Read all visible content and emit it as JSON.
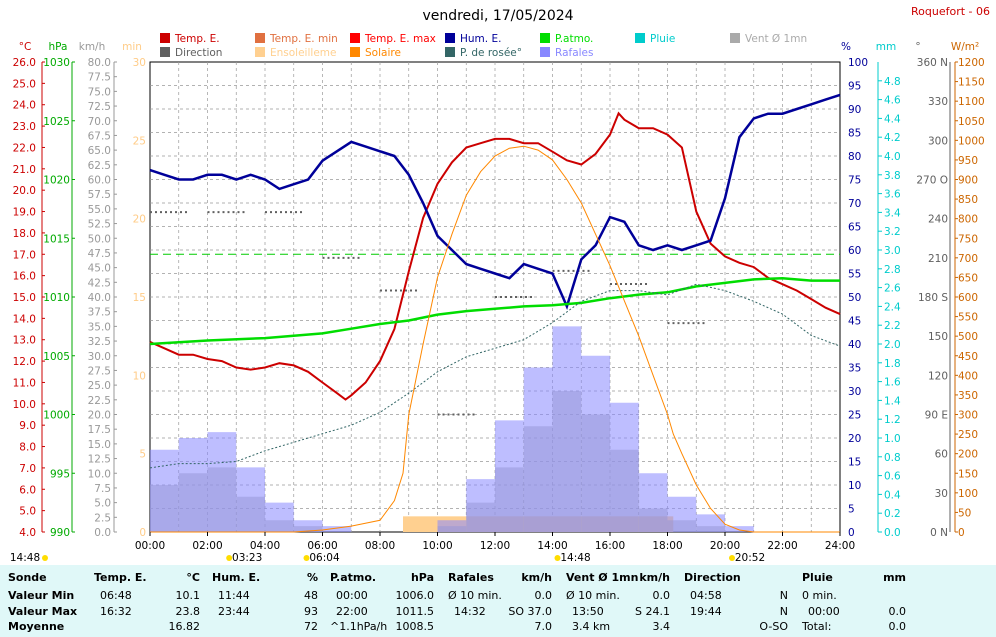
{
  "header": {
    "title": "vendredi, 17/05/2024",
    "station": "Roquefort - 06"
  },
  "legend": [
    {
      "label": "Temp. E.",
      "color": "#cc0000"
    },
    {
      "label": "Temp. E. min",
      "color": "#e07040"
    },
    {
      "label": "Temp. E. max",
      "color": "#ff0000"
    },
    {
      "label": "Hum. E.",
      "color": "#000099"
    },
    {
      "label": "P.atmo.",
      "color": "#00dd00"
    },
    {
      "label": "Pluie",
      "color": "#00cccc"
    },
    {
      "label": "Vent Ø 1mn",
      "color": "#aaaaaa"
    },
    {
      "label": "Direction",
      "color": "#606060"
    },
    {
      "label": "Ensoleilleme",
      "color": "#ffd090"
    },
    {
      "label": "Solaire",
      "color": "#ff8800"
    },
    {
      "label": "P. de rosée°",
      "color": "#336666"
    },
    {
      "label": "Rafales",
      "color": "#8888ff"
    }
  ],
  "chart_data": {
    "type": "line",
    "x_range": [
      "00:00",
      "24:00"
    ],
    "x_ticks": [
      "00:00",
      "02:00",
      "04:00",
      "06:00",
      "08:00",
      "10:00",
      "12:00",
      "14:00",
      "16:00",
      "18:00",
      "20:00",
      "22:00",
      "24:00"
    ],
    "axes": {
      "temp": {
        "unit": "°C",
        "color": "#cc0000",
        "range": [
          4.0,
          26.0
        ],
        "ticks": [
          "26.0",
          "25.0",
          "24.0",
          "23.0",
          "22.0",
          "21.0",
          "20.0",
          "19.0",
          "18.0",
          "17.0",
          "16.0",
          "15.0",
          "14.0",
          "13.0",
          "12.0",
          "11.0",
          "10.0",
          "9.0",
          "8.0",
          "7.0",
          "6.0",
          "5.0",
          "4.0"
        ]
      },
      "pressure": {
        "unit": "hPa",
        "color": "#00aa00",
        "range": [
          990,
          1030
        ],
        "ticks": [
          "1030",
          "1025",
          "1020",
          "1015",
          "1010",
          "1005",
          "1000",
          "995",
          "990"
        ]
      },
      "wind": {
        "unit": "km/h",
        "color": "#999999",
        "range": [
          0,
          80
        ],
        "ticks": [
          "80.0",
          "77.5",
          "75.0",
          "72.5",
          "70.0",
          "67.5",
          "65.0",
          "62.5",
          "60.0",
          "57.5",
          "55.0",
          "52.5",
          "50.0",
          "47.5",
          "45.0",
          "42.5",
          "40.0",
          "37.5",
          "35.0",
          "32.5",
          "30.0",
          "27.5",
          "25.0",
          "22.5",
          "20.0",
          "17.5",
          "15.0",
          "12.5",
          "10.0",
          "7.5",
          "5.0",
          "2.5",
          "0.0"
        ]
      },
      "min": {
        "unit": "min",
        "color": "#ffcc88",
        "range": [
          0,
          30
        ],
        "ticks": [
          "30",
          "25",
          "20",
          "15",
          "10",
          "5",
          "0"
        ]
      },
      "humidity": {
        "unit": "%",
        "color": "#000099",
        "range": [
          0,
          100
        ],
        "ticks": [
          "100",
          "95",
          "90",
          "85",
          "80",
          "75",
          "70",
          "65",
          "60",
          "55",
          "50",
          "45",
          "40",
          "35",
          "30",
          "25",
          "20",
          "15",
          "10",
          "5",
          "0"
        ]
      },
      "rain": {
        "unit": "mm",
        "color": "#00cccc",
        "range": [
          0,
          5
        ],
        "ticks": [
          "4.8",
          "4.6",
          "4.4",
          "4.2",
          "4.0",
          "3.8",
          "3.6",
          "3.4",
          "3.2",
          "3.0",
          "2.8",
          "2.6",
          "2.4",
          "2.2",
          "2.0",
          "1.8",
          "1.6",
          "1.4",
          "1.2",
          "1.0",
          "0.8",
          "0.6",
          "0.4",
          "0.2",
          "0.0"
        ]
      },
      "direction": {
        "unit": "°",
        "color": "#606060",
        "range": [
          0,
          360
        ],
        "ticks": [
          "360 N",
          "330",
          "300",
          "270 O",
          "240",
          "210",
          "180 S",
          "150",
          "120",
          "90 E",
          "60",
          "30",
          "0 N"
        ]
      },
      "solar": {
        "unit": "W/m²",
        "color": "#cc6600",
        "range": [
          0,
          1200
        ],
        "ticks": [
          "1200",
          "1150",
          "1100",
          "1050",
          "1000",
          "950",
          "900",
          "850",
          "800",
          "750",
          "700",
          "650",
          "600",
          "550",
          "500",
          "450",
          "400",
          "350",
          "300",
          "250",
          "200",
          "150",
          "100",
          "50",
          "0"
        ]
      }
    },
    "series": [
      {
        "name": "Temp. E.",
        "axis": "temp",
        "color": "#cc0000",
        "x": [
          0,
          0.5,
          1,
          1.5,
          2,
          2.5,
          3,
          3.5,
          4,
          4.5,
          5,
          5.5,
          6,
          6.5,
          6.8,
          7,
          7.5,
          8,
          8.5,
          9,
          9.5,
          10,
          10.5,
          11,
          11.5,
          12,
          12.5,
          13,
          13.5,
          14,
          14.5,
          15,
          15.5,
          16,
          16.3,
          16.5,
          17,
          17.5,
          18,
          18.5,
          19,
          19.5,
          20,
          20.5,
          21,
          21.5,
          22,
          22.5,
          23,
          23.5,
          24
        ],
        "y": [
          12.9,
          12.6,
          12.3,
          12.3,
          12.1,
          12.0,
          11.7,
          11.6,
          11.7,
          11.9,
          11.8,
          11.5,
          11.0,
          10.5,
          10.2,
          10.4,
          11.0,
          12.0,
          13.5,
          16.2,
          18.7,
          20.3,
          21.3,
          22.0,
          22.2,
          22.4,
          22.4,
          22.2,
          22.2,
          21.8,
          21.4,
          21.2,
          21.7,
          22.6,
          23.6,
          23.3,
          22.9,
          22.9,
          22.6,
          22.0,
          19.0,
          17.5,
          16.9,
          16.6,
          16.4,
          15.9,
          15.6,
          15.3,
          14.9,
          14.5,
          14.2
        ]
      },
      {
        "name": "Hum. E.",
        "axis": "humidity",
        "color": "#000099",
        "x": [
          0,
          0.5,
          1,
          1.5,
          2,
          2.5,
          3,
          3.5,
          4,
          4.5,
          5,
          5.5,
          6,
          6.5,
          7,
          7.5,
          8,
          8.5,
          9,
          9.5,
          10,
          10.5,
          11,
          11.5,
          12,
          12.5,
          13,
          13.5,
          14,
          14.5,
          15,
          15.5,
          16,
          16.5,
          17,
          17.5,
          18,
          18.5,
          19,
          19.5,
          20,
          20.5,
          21,
          21.5,
          22,
          22.5,
          23,
          23.5,
          24
        ],
        "y": [
          77,
          76,
          75,
          75,
          76,
          76,
          75,
          76,
          75,
          73,
          74,
          75,
          79,
          81,
          83,
          82,
          81,
          80,
          76,
          70,
          63,
          60,
          57,
          56,
          55,
          54,
          57,
          56,
          55,
          48,
          58,
          61,
          67,
          66,
          61,
          60,
          61,
          60,
          61,
          62,
          71,
          84,
          88,
          89,
          89,
          90,
          91,
          92,
          93
        ]
      },
      {
        "name": "P.atmo.",
        "axis": "pressure",
        "color": "#00dd00",
        "x": [
          0,
          2,
          4,
          6,
          7,
          8,
          9,
          10,
          11,
          12,
          13,
          14,
          15,
          16,
          17,
          18,
          19,
          20,
          21,
          22,
          23,
          24
        ],
        "y": [
          1006.0,
          1006.3,
          1006.5,
          1006.9,
          1007.3,
          1007.7,
          1008.0,
          1008.5,
          1008.8,
          1009.0,
          1009.2,
          1009.3,
          1009.5,
          1009.9,
          1010.2,
          1010.4,
          1010.9,
          1011.2,
          1011.5,
          1011.6,
          1011.4,
          1011.4
        ]
      },
      {
        "name": "P. de rosée°",
        "axis": "temp",
        "color": "#336666",
        "x": [
          0,
          1,
          2,
          3,
          4,
          5,
          6,
          7,
          8,
          9,
          10,
          11,
          12,
          13,
          14,
          15,
          16,
          17,
          18,
          19,
          20,
          21,
          22,
          23,
          24
        ],
        "y": [
          7.0,
          7.2,
          7.2,
          7.3,
          7.8,
          8.2,
          8.6,
          9.0,
          9.6,
          10.5,
          11.5,
          12.2,
          12.6,
          13.0,
          13.8,
          14.8,
          15.3,
          15.3,
          15.1,
          15.6,
          15.3,
          14.8,
          14.2,
          13.2,
          12.7
        ]
      },
      {
        "name": "Solaire",
        "axis": "solar",
        "color": "#ff8800",
        "x": [
          0,
          5,
          6,
          7,
          8,
          8.5,
          8.8,
          9,
          9.5,
          10,
          10.5,
          11,
          11.5,
          12,
          12.5,
          13,
          13.5,
          14,
          14.5,
          15,
          15.5,
          16,
          16.5,
          17,
          17.5,
          18,
          18.2,
          18.5,
          19,
          19.5,
          20,
          20.5,
          21,
          24
        ],
        "y": [
          0,
          0,
          5,
          15,
          30,
          80,
          150,
          300,
          480,
          650,
          760,
          860,
          920,
          960,
          980,
          985,
          975,
          950,
          900,
          840,
          760,
          680,
          590,
          500,
          400,
          300,
          250,
          200,
          120,
          60,
          20,
          5,
          0,
          0
        ]
      },
      {
        "name": "Vent Ø 1mn",
        "axis": "wind",
        "color": "#aaaaaa",
        "x": [
          0,
          1,
          2,
          3,
          4,
          5,
          6,
          7,
          8,
          9,
          10,
          11,
          12,
          13,
          14,
          15,
          16,
          17,
          18,
          19,
          20,
          21,
          24
        ],
        "y": [
          8,
          10,
          11,
          6,
          2,
          1,
          0,
          0,
          0,
          0,
          1,
          5,
          11,
          18,
          24,
          20,
          14,
          4,
          2,
          1,
          0,
          0,
          0
        ]
      },
      {
        "name": "Rafales",
        "axis": "wind",
        "color": "#8888ff",
        "x": [
          0,
          1,
          2,
          3,
          4,
          5,
          6,
          7,
          8,
          9,
          10,
          11,
          12,
          13,
          14,
          15,
          16,
          17,
          18,
          19,
          20,
          21,
          24
        ],
        "y": [
          14,
          16,
          17,
          11,
          5,
          2,
          1,
          0,
          0,
          0,
          2,
          9,
          19,
          28,
          35,
          30,
          22,
          10,
          6,
          3,
          1,
          0,
          0
        ]
      },
      {
        "name": "Ensoleilleme",
        "axis": "min",
        "color": "#ffd090",
        "x": [
          8.8,
          18.2
        ],
        "y": [
          1,
          1
        ]
      },
      {
        "name": "Direction",
        "axis": "direction",
        "color": "#606060",
        "x": [
          0,
          2,
          4,
          6,
          8,
          10,
          12,
          14,
          16,
          18
        ],
        "y": [
          245,
          245,
          245,
          210,
          185,
          90,
          180,
          200,
          190,
          160
        ]
      }
    ],
    "limit_line": {
      "axis": "temp",
      "value": 17.0,
      "color": "#00cc00"
    },
    "x_markers": [
      {
        "label": "14:48",
        "time": 0
      },
      {
        "label": "03:23",
        "time": 3.38
      },
      {
        "label": "06:04",
        "time": 6.07
      },
      {
        "label": "14:48",
        "time": 14.8
      },
      {
        "label": "20:52",
        "time": 20.87
      }
    ]
  },
  "stats": {
    "headers": {
      "sonde": "Sonde",
      "temp": "Temp. E.",
      "temp_unit": "°C",
      "hum": "Hum. E.",
      "hum_unit": "%",
      "press": "P.atmo.",
      "press_unit": "hPa",
      "raf": "Rafales",
      "raf_unit": "km/h",
      "vent": "Vent Ø 1mn",
      "vent_unit": "km/h",
      "dir": "Direction",
      "pluie": "Pluie",
      "pluie_unit": "mm"
    },
    "rows": [
      {
        "label": "Valeur Min",
        "temp_time": "06:48",
        "temp": "10.1",
        "hum_time": "11:44",
        "hum": "48",
        "press_time": "00:00",
        "press": "1006.0",
        "raf_time": "Ø 10 min.",
        "raf": "0.0",
        "vent_time": "Ø 10 min.",
        "vent": "0.0",
        "dir_time": "04:58",
        "dir": "N",
        "pluie_time": "0 min.",
        "pluie": ""
      },
      {
        "label": "Valeur Max",
        "temp_time": "16:32",
        "temp": "23.8",
        "hum_time": "23:44",
        "hum": "93",
        "press_time": "22:00",
        "press": "1011.5",
        "raf_time": "14:32",
        "raf": "SO 37.0",
        "vent_time": "13:50",
        "vent": "S 24.1",
        "dir_time": "19:44",
        "dir": "N",
        "pluie_time": "00:00",
        "pluie": "0.0"
      },
      {
        "label": "Moyenne",
        "temp_time": "",
        "temp": "16.82",
        "hum_time": "",
        "hum": "72",
        "press_time": "^1.1hPa/h",
        "press": "1008.5",
        "raf_time": "",
        "raf": "7.0",
        "vent_time": "3.4 km",
        "vent": "3.4",
        "dir_time": "",
        "dir": "O-SO",
        "pluie_time": "Total:",
        "pluie": "0.0"
      }
    ]
  }
}
